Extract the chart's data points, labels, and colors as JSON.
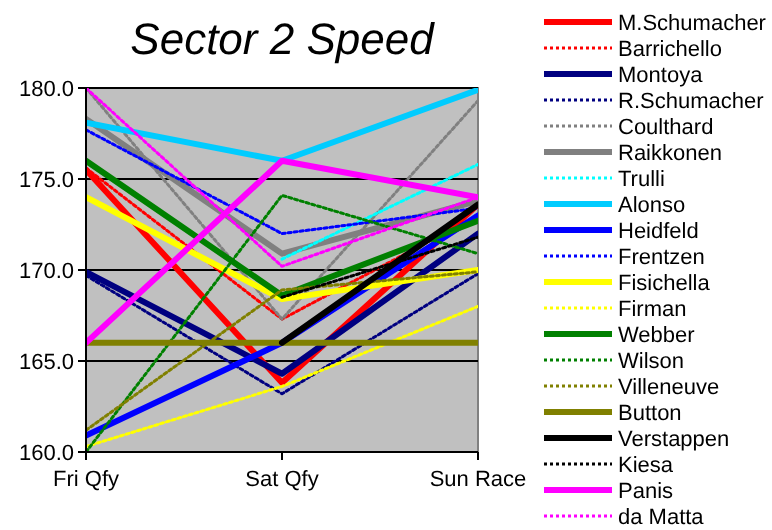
{
  "chart_data": {
    "type": "line",
    "title": "Sector 2 Speed",
    "categories": [
      "Fri Qfy",
      "Sat Qfy",
      "Sun Race"
    ],
    "ylim": [
      160,
      180
    ],
    "yticks": [
      {
        "value": 160,
        "label": "160.0"
      },
      {
        "value": 165,
        "label": "165.0"
      },
      {
        "value": 170,
        "label": "170.0"
      },
      {
        "value": 175,
        "label": "175.0"
      },
      {
        "value": 180,
        "label": "180.0"
      }
    ],
    "grid": "y",
    "legend": "right",
    "marker": "none",
    "series": [
      {
        "name": "M.Schumacher",
        "color": "#ff0000",
        "line_style": "solid",
        "values": [
          175.5,
          163.8,
          173.6
        ]
      },
      {
        "name": "Barrichello",
        "color": "#ff0000",
        "line_style": "dotted",
        "values": [
          175.6,
          167.3,
          173.0
        ]
      },
      {
        "name": "Montoya",
        "color": "#000080",
        "line_style": "solid",
        "values": [
          169.9,
          164.3,
          172.0
        ]
      },
      {
        "name": "R.Schumacher",
        "color": "#000080",
        "line_style": "dotted",
        "values": [
          169.7,
          163.2,
          169.8
        ]
      },
      {
        "name": "Coulthard",
        "color": "#808080",
        "line_style": "dotted",
        "values": [
          180,
          167.3,
          179.3
        ]
      },
      {
        "name": "Raikkonen",
        "color": "#808080",
        "line_style": "solid",
        "values": [
          178.3,
          170.9,
          173.8
        ]
      },
      {
        "name": "Trulli",
        "color": "#00ffff",
        "line_style": "dotted",
        "values": [
          null,
          170.6,
          175.8
        ]
      },
      {
        "name": "Alonso",
        "color": "#00ccff",
        "line_style": "solid",
        "values": [
          178.1,
          176.0,
          179.9
        ]
      },
      {
        "name": "Heidfeld",
        "color": "#0000ff",
        "line_style": "solid",
        "values": [
          160.9,
          166.0,
          173.0
        ]
      },
      {
        "name": "Frentzen",
        "color": "#0000ff",
        "line_style": "dotted",
        "values": [
          177.7,
          172.0,
          173.4
        ]
      },
      {
        "name": "Fisichella",
        "color": "#ffff00",
        "line_style": "solid",
        "values": [
          174.0,
          168.4,
          170.0
        ]
      },
      {
        "name": "Firman",
        "color": "#ffff00",
        "line_style": "dotted",
        "values": [
          160.3,
          163.6,
          168.0
        ]
      },
      {
        "name": "Webber",
        "color": "#008000",
        "line_style": "solid",
        "values": [
          176.0,
          168.6,
          172.7
        ]
      },
      {
        "name": "Wilson",
        "color": "#008000",
        "line_style": "dotted",
        "values": [
          160,
          174.1,
          170.9
        ]
      },
      {
        "name": "Villeneuve",
        "color": "#808000",
        "line_style": "dotted",
        "values": [
          161.2,
          168.9,
          169.9
        ]
      },
      {
        "name": "Button",
        "color": "#808000",
        "line_style": "solid",
        "values": [
          166.0,
          166.0,
          166.0
        ]
      },
      {
        "name": "Verstappen",
        "color": "#000000",
        "line_style": "solid",
        "values": [
          null,
          166.0,
          173.6
        ]
      },
      {
        "name": "Kiesa",
        "color": "#000000",
        "line_style": "dotted",
        "values": [
          null,
          168.5,
          171.8
        ]
      },
      {
        "name": "Panis",
        "color": "#ff00ff",
        "line_style": "solid",
        "values": [
          166.0,
          176.0,
          174.0
        ]
      },
      {
        "name": "da Matta",
        "color": "#ff00ff",
        "line_style": "dotted",
        "values": [
          180,
          170.2,
          174.0
        ]
      }
    ]
  }
}
